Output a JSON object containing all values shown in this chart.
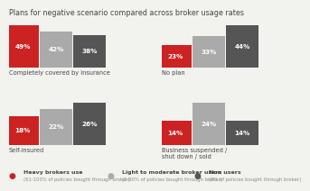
{
  "title": "Plans for negative scenario compared across broker usage rates",
  "charts": [
    {
      "label": "Completely covered by insurance",
      "values": [
        49,
        42,
        38
      ]
    },
    {
      "label": "No plan",
      "values": [
        23,
        33,
        44
      ]
    },
    {
      "label": "Self-insured",
      "values": [
        18,
        22,
        26
      ]
    },
    {
      "label": "Business suspended /\nshut down / sold",
      "values": [
        14,
        24,
        14
      ]
    }
  ],
  "colors": [
    "#cc2222",
    "#aaaaaa",
    "#555555"
  ],
  "legend": [
    {
      "label": "Heavy brokers use",
      "sublabel": "(61-100% of policies bought through broker)",
      "color": "#cc2222"
    },
    {
      "label": "Light to moderate broker users",
      "sublabel": "(1-60% of policies bought through broker)",
      "color": "#aaaaaa"
    },
    {
      "label": "Non users",
      "sublabel": "(0% of policies bought through broker)",
      "color": "#555555"
    }
  ],
  "background": "#f2f2ee",
  "text_color": "#444444",
  "title_fontsize": 5.8,
  "label_fontsize": 4.8,
  "bar_label_fontsize": 5.2,
  "legend_title_fontsize": 4.5,
  "legend_sub_fontsize": 3.8
}
